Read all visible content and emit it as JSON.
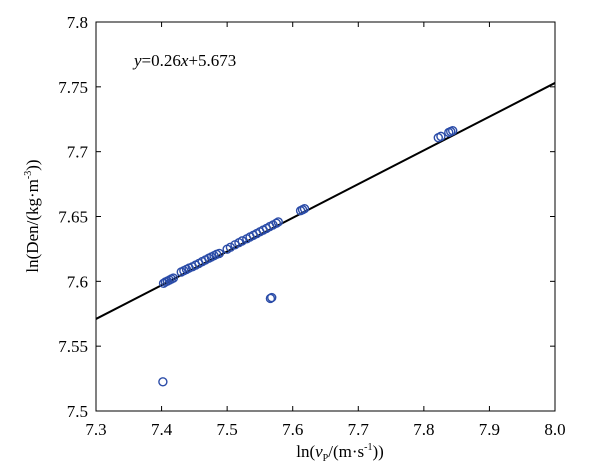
{
  "chart_data": {
    "type": "scatter",
    "title": "",
    "equation": {
      "y_var": "y",
      "middle": "=0.26",
      "x_var": "x",
      "rest": "+5.673"
    },
    "xlabel": {
      "prefix": "ln(",
      "var": "v",
      "sub": "P",
      "mid": "/(m·s",
      "sup": "-1",
      "end": "))"
    },
    "ylabel": {
      "prefix": "ln(Den/(kg·m",
      "sup": "-3",
      "end": "))"
    },
    "xlim": [
      7.3,
      8.0
    ],
    "ylim": [
      7.5,
      7.8
    ],
    "xticks": [
      "7.3",
      "7.4",
      "7.5",
      "7.6",
      "7.7",
      "7.8",
      "7.9",
      "8.0"
    ],
    "yticks": [
      "7.5",
      "7.55",
      "7.6",
      "7.65",
      "7.7",
      "7.75",
      "7.8"
    ],
    "fit_line": {
      "slope": 0.26,
      "intercept": 5.673,
      "color": "#000000"
    },
    "marker_color": "#2b4ca8",
    "points": [
      {
        "x": 7.403,
        "y": 7.5985
      },
      {
        "x": 7.406,
        "y": 7.5995
      },
      {
        "x": 7.409,
        "y": 7.6002
      },
      {
        "x": 7.412,
        "y": 7.601
      },
      {
        "x": 7.415,
        "y": 7.6018
      },
      {
        "x": 7.418,
        "y": 7.6025
      },
      {
        "x": 7.43,
        "y": 7.6072
      },
      {
        "x": 7.434,
        "y": 7.6082
      },
      {
        "x": 7.438,
        "y": 7.6092
      },
      {
        "x": 7.442,
        "y": 7.6102
      },
      {
        "x": 7.447,
        "y": 7.6112
      },
      {
        "x": 7.452,
        "y": 7.6125
      },
      {
        "x": 7.457,
        "y": 7.6138
      },
      {
        "x": 7.462,
        "y": 7.6152
      },
      {
        "x": 7.467,
        "y": 7.6165
      },
      {
        "x": 7.472,
        "y": 7.6178
      },
      {
        "x": 7.476,
        "y": 7.6188
      },
      {
        "x": 7.48,
        "y": 7.6198
      },
      {
        "x": 7.484,
        "y": 7.6208
      },
      {
        "x": 7.488,
        "y": 7.6215
      },
      {
        "x": 7.5,
        "y": 7.6248
      },
      {
        "x": 7.505,
        "y": 7.6262
      },
      {
        "x": 7.512,
        "y": 7.6282
      },
      {
        "x": 7.518,
        "y": 7.6298
      },
      {
        "x": 7.523,
        "y": 7.6312
      },
      {
        "x": 7.53,
        "y": 7.6328
      },
      {
        "x": 7.535,
        "y": 7.6342
      },
      {
        "x": 7.54,
        "y": 7.6355
      },
      {
        "x": 7.545,
        "y": 7.6368
      },
      {
        "x": 7.55,
        "y": 7.6382
      },
      {
        "x": 7.555,
        "y": 7.6395
      },
      {
        "x": 7.56,
        "y": 7.6408
      },
      {
        "x": 7.565,
        "y": 7.6422
      },
      {
        "x": 7.57,
        "y": 7.6435
      },
      {
        "x": 7.575,
        "y": 7.6448
      },
      {
        "x": 7.578,
        "y": 7.6458
      },
      {
        "x": 7.612,
        "y": 7.6545
      },
      {
        "x": 7.615,
        "y": 7.6552
      },
      {
        "x": 7.618,
        "y": 7.656
      },
      {
        "x": 7.822,
        "y": 7.7108
      },
      {
        "x": 7.826,
        "y": 7.7118
      },
      {
        "x": 7.838,
        "y": 7.7148
      },
      {
        "x": 7.841,
        "y": 7.7155
      },
      {
        "x": 7.844,
        "y": 7.7162
      },
      {
        "x": 7.566,
        "y": 7.5868
      },
      {
        "x": 7.568,
        "y": 7.5875
      },
      {
        "x": 7.402,
        "y": 7.5225
      }
    ]
  }
}
